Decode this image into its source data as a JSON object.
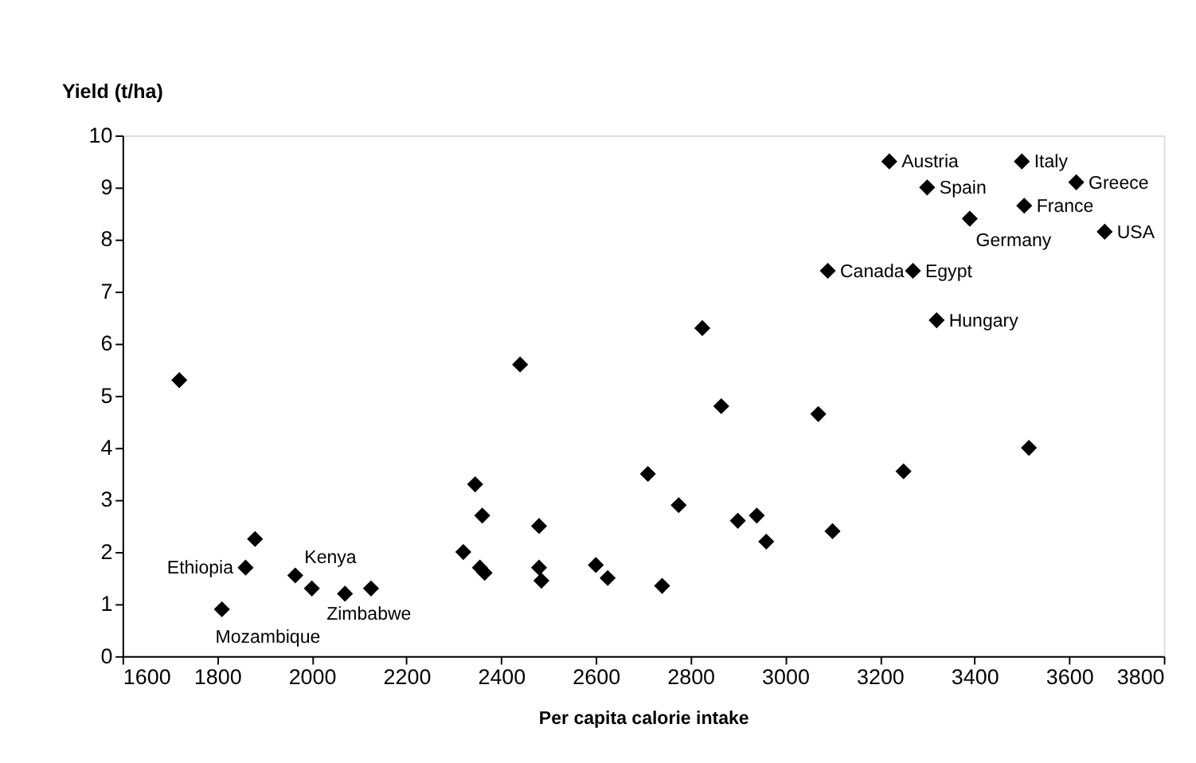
{
  "chart_data": {
    "type": "scatter",
    "xlabel": "Per capita calorie intake",
    "ylabel": "Yield (t/ha)",
    "xlim": [
      1600,
      3800
    ],
    "xticks": [
      1600,
      1800,
      2000,
      2200,
      2400,
      2600,
      2800,
      3000,
      3200,
      3400,
      3600,
      3800
    ],
    "ylim": [
      0,
      10
    ],
    "yticks": [
      0,
      1,
      2,
      3,
      4,
      5,
      6,
      7,
      8,
      9,
      10
    ],
    "grid": false,
    "marker": "diamond",
    "series": [
      {
        "color": "#000000",
        "x": [
          1720,
          1810,
          1860,
          1880,
          1965,
          2000,
          2070,
          2125,
          2320,
          2345,
          2360,
          2355,
          2365,
          2440,
          2480,
          2480,
          2485,
          2600,
          2625,
          2710,
          2740,
          2775,
          2825,
          2865,
          2900,
          2940,
          2960,
          3070,
          3100,
          3250,
          3515,
          3090,
          3270,
          3320,
          3220,
          3300,
          3390,
          3500,
          3505,
          3615,
          3675
        ],
        "values": [
          5.3,
          0.9,
          1.7,
          2.25,
          1.55,
          1.3,
          1.2,
          1.3,
          2.0,
          3.3,
          2.7,
          1.7,
          1.6,
          5.6,
          2.5,
          1.7,
          1.45,
          1.75,
          1.5,
          3.5,
          1.35,
          2.9,
          6.3,
          4.8,
          2.6,
          2.7,
          2.2,
          4.65,
          2.4,
          3.55,
          4.0,
          7.4,
          7.4,
          6.45,
          9.5,
          9.0,
          8.4,
          9.5,
          8.65,
          9.1,
          8.15
        ]
      }
    ],
    "annotations": [
      {
        "text": "Mozambique",
        "x": 1810,
        "y": 0.9
      },
      {
        "text": "Ethiopia",
        "x": 1860,
        "y": 1.7
      },
      {
        "text": "Kenya",
        "x": 1965,
        "y": 1.55
      },
      {
        "text": "Zimbabwe",
        "x": 2070,
        "y": 1.2
      },
      {
        "text": "Canada",
        "x": 3090,
        "y": 7.4
      },
      {
        "text": "Egypt",
        "x": 3270,
        "y": 7.4
      },
      {
        "text": "Hungary",
        "x": 3320,
        "y": 6.45
      },
      {
        "text": "Austria",
        "x": 3220,
        "y": 9.5
      },
      {
        "text": "Spain",
        "x": 3300,
        "y": 9.0
      },
      {
        "text": "Germany",
        "x": 3390,
        "y": 8.4
      },
      {
        "text": "Italy",
        "x": 3500,
        "y": 9.5
      },
      {
        "text": "France",
        "x": 3505,
        "y": 8.65
      },
      {
        "text": "Greece",
        "x": 3615,
        "y": 9.1
      },
      {
        "text": "USA",
        "x": 3675,
        "y": 8.15
      }
    ]
  }
}
